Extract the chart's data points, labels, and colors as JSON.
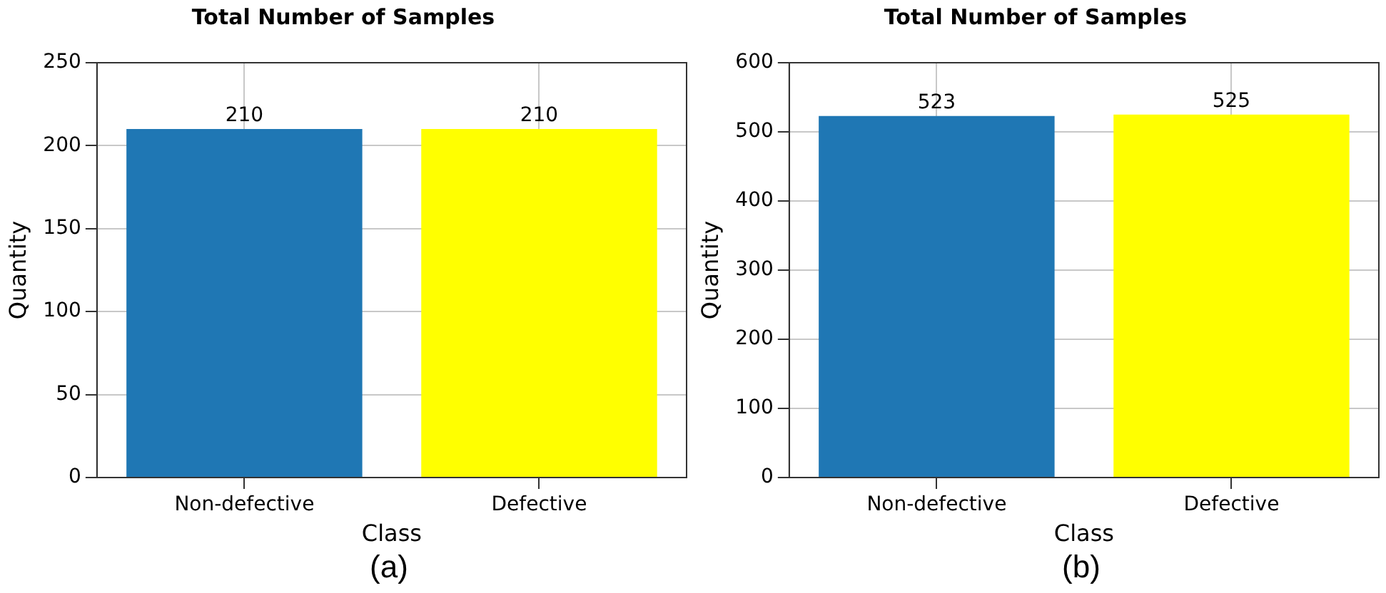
{
  "chart_data": [
    {
      "type": "bar",
      "title": "Total Number of Samples",
      "xlabel": "Class",
      "ylabel": "Quantity",
      "categories": [
        "Non-defective",
        "Defective"
      ],
      "values": [
        210,
        210
      ],
      "colors": [
        "#1f77b4",
        "#ffff00"
      ],
      "ylim": [
        0,
        250
      ],
      "yticks": [
        0,
        50,
        100,
        150,
        200,
        250
      ],
      "grid": true,
      "data_labels": true,
      "annotations": [
        "(a)"
      ]
    },
    {
      "type": "bar",
      "title": "Total Number of Samples",
      "xlabel": "Class",
      "ylabel": "Quantity",
      "categories": [
        "Non-defective",
        "Defective"
      ],
      "values": [
        523,
        525
      ],
      "colors": [
        "#1f77b4",
        "#ffff00"
      ],
      "ylim": [
        0,
        600
      ],
      "yticks": [
        0,
        100,
        200,
        300,
        400,
        500,
        600
      ],
      "grid": true,
      "data_labels": true,
      "annotations": [
        "(b)"
      ]
    }
  ]
}
